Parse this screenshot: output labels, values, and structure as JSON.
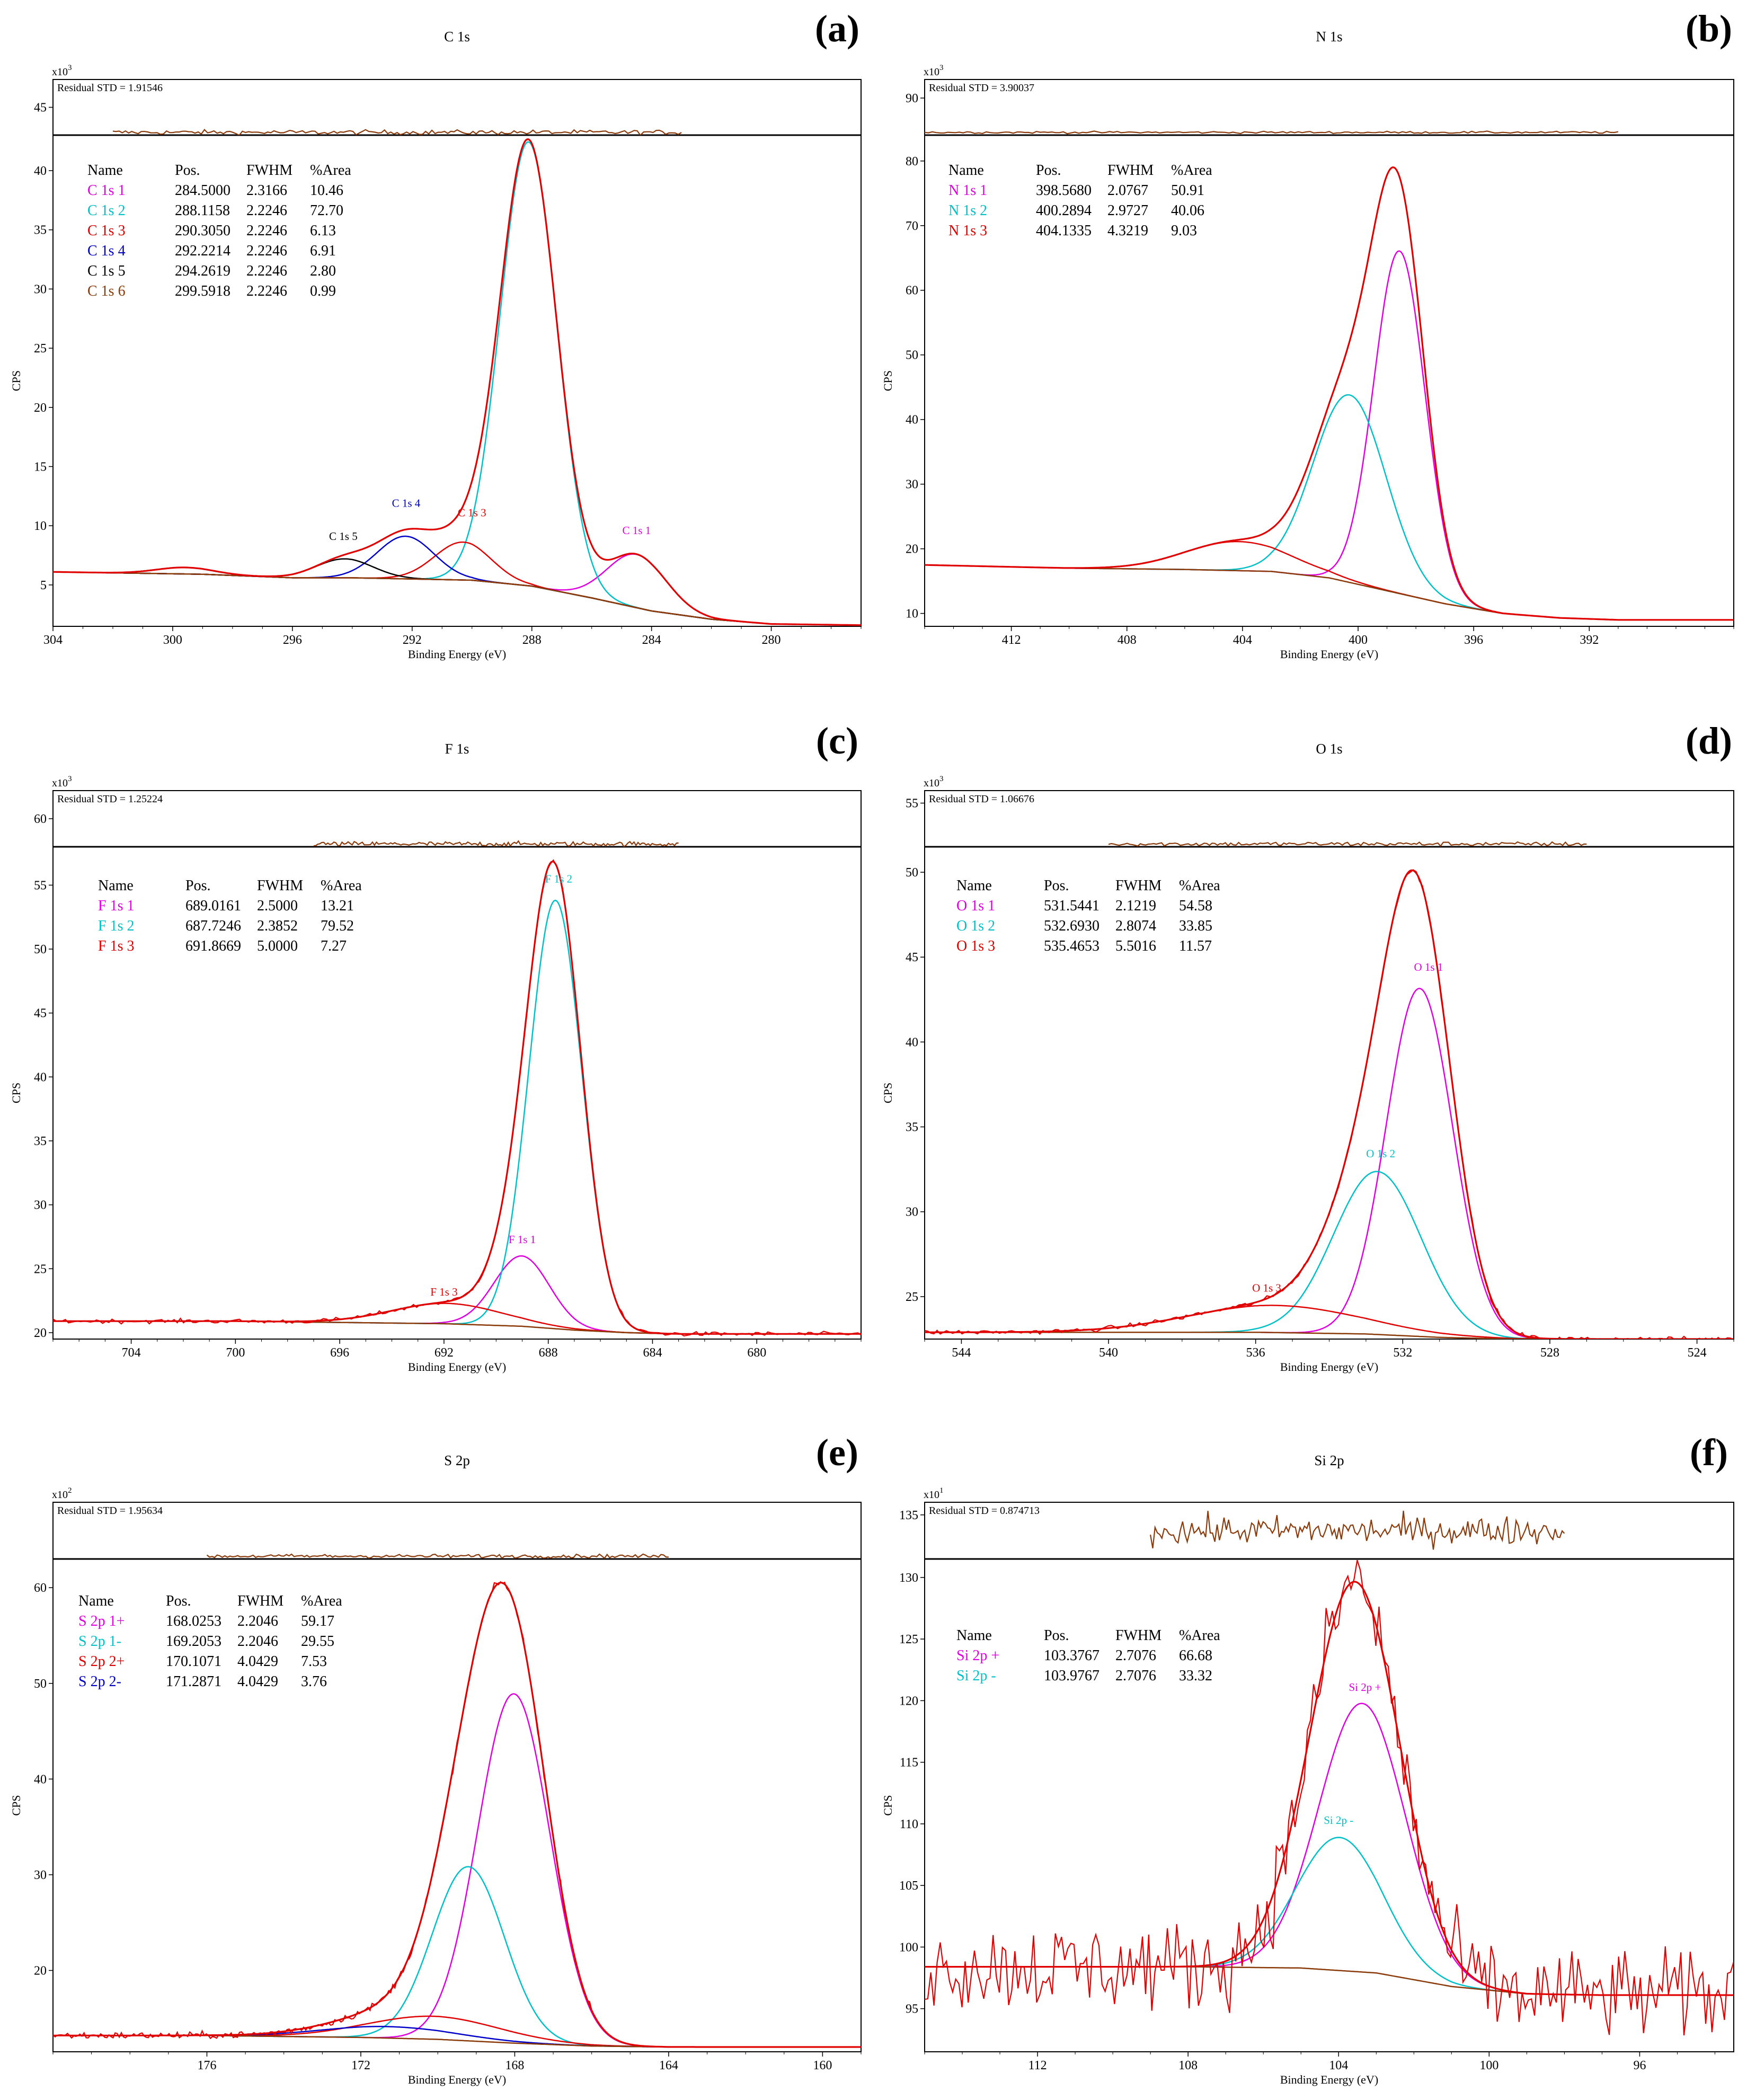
{
  "colors": {
    "envelope": "#e00000",
    "background": "#8b3a0a",
    "axis": "#000000",
    "magenta": "#e000e0",
    "cyan": "#00c0c8",
    "red": "#e00000",
    "blue": "#0000c8",
    "black": "#000000",
    "brown": "#8b3a0a"
  },
  "chart_data": [
    {
      "panel_label": "(a)",
      "title": "C 1s",
      "residual": "Residual STD = 1.91546",
      "scale": "x10",
      "exp": "3",
      "type": "line",
      "xlabel": "Binding Energy (eV)",
      "ylabel": "CPS",
      "xlim": [
        304,
        277
      ],
      "ylim": [
        1.5,
        43
      ],
      "residual_ylim": [
        43,
        47
      ],
      "xticks": [
        "304",
        "300",
        "296",
        "292",
        "288",
        "284",
        "280"
      ],
      "yticks": [
        "5",
        "10",
        "15",
        "20",
        "25",
        "30",
        "35",
        "40"
      ],
      "residual_yticks": [
        "45"
      ],
      "table": {
        "headers": [
          "Name",
          "Pos.",
          "FWHM",
          "%Area"
        ],
        "rows": [
          {
            "name": "C 1s 1",
            "pos": "284.5000",
            "fwhm": "2.3166",
            "area": "10.46",
            "color": "magenta"
          },
          {
            "name": "C 1s 2",
            "pos": "288.1158",
            "fwhm": "2.2246",
            "area": "72.70",
            "color": "cyan"
          },
          {
            "name": "C 1s 3",
            "pos": "290.3050",
            "fwhm": "2.2246",
            "area": "6.13",
            "color": "red"
          },
          {
            "name": "C 1s 4",
            "pos": "292.2214",
            "fwhm": "2.2246",
            "area": "6.91",
            "color": "blue"
          },
          {
            "name": "C 1s 5",
            "pos": "294.2619",
            "fwhm": "2.2246",
            "area": "2.80",
            "color": "black"
          },
          {
            "name": "C 1s 6",
            "pos": "299.5918",
            "fwhm": "2.2246",
            "area": "0.99",
            "color": "brown"
          }
        ]
      },
      "labels": [
        {
          "text": "C 1s 1",
          "x": 284.5,
          "y": 9.3,
          "color": "magenta"
        },
        {
          "text": "C 1s 3",
          "x": 290.0,
          "y": 10.8,
          "color": "red"
        },
        {
          "text": "C 1s 4",
          "x": 292.2,
          "y": 11.6,
          "color": "blue"
        },
        {
          "text": "C 1s 5",
          "x": 294.3,
          "y": 8.8,
          "color": "black"
        }
      ],
      "bg": {
        "xs": [
          304,
          299,
          296,
          294,
          292,
          290,
          288,
          286,
          284,
          282,
          280,
          277
        ],
        "ys": [
          6.1,
          5.9,
          5.6,
          5.6,
          5.5,
          5.4,
          4.9,
          3.9,
          2.8,
          2.1,
          1.7,
          1.6
        ]
      },
      "peaks": [
        {
          "c": 284.5,
          "h": 4.5,
          "w": 2.3166,
          "color": "magenta"
        },
        {
          "c": 288.1158,
          "h": 37.5,
          "w": 2.2246,
          "color": "cyan"
        },
        {
          "c": 290.305,
          "h": 3.2,
          "w": 2.2246,
          "color": "red"
        },
        {
          "c": 292.2214,
          "h": 3.6,
          "w": 2.2246,
          "color": "blue"
        },
        {
          "c": 294.2619,
          "h": 1.6,
          "w": 2.2246,
          "color": "black"
        },
        {
          "c": 299.5918,
          "h": 0.55,
          "w": 2.2246,
          "color": "brown"
        }
      ],
      "noise": 0,
      "noise_range": null,
      "resid_range": [
        302,
        283
      ]
    },
    {
      "panel_label": "(b)",
      "title": "N 1s",
      "residual": "Residual STD = 3.90037",
      "scale": "x10",
      "exp": "3",
      "type": "line",
      "xlabel": "Binding Energy (eV)",
      "ylabel": "CPS",
      "xlim": [
        415,
        387
      ],
      "ylim": [
        8,
        84
      ],
      "residual_ylim": [
        84,
        93
      ],
      "xticks": [
        "412",
        "408",
        "404",
        "400",
        "396",
        "392"
      ],
      "yticks": [
        "10",
        "20",
        "30",
        "40",
        "50",
        "60",
        "70",
        "80"
      ],
      "residual_yticks": [
        "90"
      ],
      "table": {
        "headers": [
          "Name",
          "Pos.",
          "FWHM",
          "%Area"
        ],
        "rows": [
          {
            "name": "N 1s 1",
            "pos": "398.5680",
            "fwhm": "2.0767",
            "area": "50.91",
            "color": "magenta"
          },
          {
            "name": "N 1s 2",
            "pos": "400.2894",
            "fwhm": "2.9727",
            "area": "40.06",
            "color": "cyan"
          },
          {
            "name": "N 1s 3",
            "pos": "404.1335",
            "fwhm": "4.3219",
            "area": "9.03",
            "color": "red"
          }
        ]
      },
      "labels": [],
      "bg": {
        "xs": [
          415,
          410,
          406,
          403,
          401,
          399,
          397,
          395,
          393,
          391,
          387
        ],
        "ys": [
          17.5,
          17.0,
          16.8,
          16.5,
          15.5,
          13.5,
          11.5,
          10.0,
          9.3,
          9.0,
          9.0
        ]
      },
      "peaks": [
        {
          "c": 398.568,
          "h": 53,
          "w": 2.0767,
          "color": "magenta"
        },
        {
          "c": 400.2894,
          "h": 29,
          "w": 2.9727,
          "color": "cyan"
        },
        {
          "c": 404.1335,
          "h": 4.5,
          "w": 4.3219,
          "color": "red"
        }
      ],
      "noise": 0,
      "noise_range": null,
      "resid_range": [
        415,
        391
      ]
    },
    {
      "panel_label": "(c)",
      "title": "F 1s",
      "residual": "Residual STD = 1.25224",
      "scale": "x10",
      "exp": "3",
      "type": "line",
      "xlabel": "Binding Energy (eV)",
      "ylabel": "CPS",
      "xlim": [
        707,
        676
      ],
      "ylim": [
        19.5,
        58
      ],
      "residual_ylim": [
        58,
        62
      ],
      "xticks": [
        "704",
        "700",
        "696",
        "692",
        "688",
        "684",
        "680"
      ],
      "yticks": [
        "20",
        "25",
        "30",
        "35",
        "40",
        "45",
        "50",
        "55"
      ],
      "residual_yticks": [
        "60"
      ],
      "table": {
        "headers": [
          "Name",
          "Pos.",
          "FWHM",
          "%Area"
        ],
        "rows": [
          {
            "name": "F 1s 1",
            "pos": "689.0161",
            "fwhm": "2.5000",
            "area": "13.21",
            "color": "magenta"
          },
          {
            "name": "F 1s 2",
            "pos": "687.7246",
            "fwhm": "2.3852",
            "area": "79.52",
            "color": "cyan"
          },
          {
            "name": "F 1s 3",
            "pos": "691.8669",
            "fwhm": "5.0000",
            "area": "7.27",
            "color": "red"
          }
        ]
      },
      "labels": [
        {
          "text": "F 1s 1",
          "x": 689.0,
          "y": 27.0,
          "color": "magenta"
        },
        {
          "text": "F 1s 2",
          "x": 687.6,
          "y": 55.2,
          "color": "cyan"
        },
        {
          "text": "F 1s 3",
          "x": 692.0,
          "y": 22.9,
          "color": "red"
        }
      ],
      "bg": {
        "xs": [
          707,
          700,
          696,
          692,
          689,
          687,
          685,
          683,
          676
        ],
        "ys": [
          20.9,
          20.9,
          20.8,
          20.7,
          20.5,
          20.2,
          20.0,
          19.9,
          19.9
        ]
      },
      "peaks": [
        {
          "c": 689.0161,
          "h": 5.5,
          "w": 2.5,
          "color": "magenta"
        },
        {
          "c": 687.7246,
          "h": 33.5,
          "w": 2.3852,
          "color": "cyan"
        },
        {
          "c": 691.8669,
          "h": 1.6,
          "w": 5.0,
          "color": "red"
        }
      ],
      "noise": 0.12,
      "noise_range": [
        707,
        676
      ],
      "resid_range": [
        697,
        683
      ]
    },
    {
      "panel_label": "(d)",
      "title": "O 1s",
      "residual": "Residual STD = 1.06676",
      "scale": "x10",
      "exp": "3",
      "type": "line",
      "xlabel": "Binding Energy (eV)",
      "ylabel": "CPS",
      "xlim": [
        545,
        523
      ],
      "ylim": [
        22.5,
        51.5
      ],
      "residual_ylim": [
        51.5,
        56
      ],
      "xticks": [
        "544",
        "540",
        "536",
        "532",
        "528",
        "524"
      ],
      "yticks": [
        "25",
        "30",
        "35",
        "40",
        "45",
        "50"
      ],
      "residual_yticks": [
        "55"
      ],
      "table": {
        "headers": [
          "Name",
          "Pos.",
          "FWHM",
          "%Area"
        ],
        "rows": [
          {
            "name": "O 1s 1",
            "pos": "531.5441",
            "fwhm": "2.1219",
            "area": "54.58",
            "color": "magenta"
          },
          {
            "name": "O 1s 2",
            "pos": "532.6930",
            "fwhm": "2.8074",
            "area": "33.85",
            "color": "cyan"
          },
          {
            "name": "O 1s 3",
            "pos": "535.4653",
            "fwhm": "5.5016",
            "area": "11.57",
            "color": "red"
          }
        ]
      },
      "labels": [
        {
          "text": "O 1s 1",
          "x": 531.3,
          "y": 44.2,
          "color": "magenta"
        },
        {
          "text": "O 1s 2",
          "x": 532.6,
          "y": 33.2,
          "color": "cyan"
        },
        {
          "text": "O 1s 3",
          "x": 535.7,
          "y": 25.3,
          "color": "red"
        }
      ],
      "bg": {
        "xs": [
          545,
          540,
          536,
          533,
          531,
          529,
          527,
          523
        ],
        "ys": [
          22.9,
          22.9,
          22.9,
          22.8,
          22.6,
          22.5,
          22.5,
          22.5
        ]
      },
      "peaks": [
        {
          "c": 531.5441,
          "h": 20.5,
          "w": 2.1219,
          "color": "magenta"
        },
        {
          "c": 532.693,
          "h": 9.6,
          "w": 2.8074,
          "color": "cyan"
        },
        {
          "c": 535.4653,
          "h": 1.6,
          "w": 5.5016,
          "color": "red"
        }
      ],
      "noise": 0.1,
      "noise_range": [
        545,
        523
      ],
      "resid_range": [
        540,
        527
      ]
    },
    {
      "panel_label": "(e)",
      "title": "S 2p",
      "residual": "Residual STD = 1.95634",
      "scale": "x10",
      "exp": "2",
      "type": "line",
      "xlabel": "Binding Energy (eV)",
      "ylabel": "CPS",
      "xlim": [
        180,
        159
      ],
      "ylim": [
        11.5,
        63
      ],
      "residual_ylim": [
        63,
        68
      ],
      "xticks": [
        "176",
        "172",
        "168",
        "164",
        "160"
      ],
      "yticks": [
        "20",
        "30",
        "40",
        "50",
        "60"
      ],
      "residual_yticks": [],
      "table": {
        "headers": [
          "Name",
          "Pos.",
          "FWHM",
          "%Area"
        ],
        "rows": [
          {
            "name": "S 2p 1+",
            "pos": "168.0253",
            "fwhm": "2.2046",
            "area": "59.17",
            "color": "magenta"
          },
          {
            "name": "S 2p 1-",
            "pos": "169.2053",
            "fwhm": "2.2046",
            "area": "29.55",
            "color": "cyan"
          },
          {
            "name": "S 2p 2+",
            "pos": "170.1071",
            "fwhm": "4.0429",
            "area": "7.53",
            "color": "red"
          },
          {
            "name": "S 2p 2-",
            "pos": "171.2871",
            "fwhm": "4.0429",
            "area": "3.76",
            "color": "blue"
          }
        ]
      },
      "labels": [],
      "bg": {
        "xs": [
          180,
          176,
          172,
          170,
          168,
          166,
          164,
          162,
          159
        ],
        "ys": [
          13.2,
          13.2,
          13.0,
          12.8,
          12.4,
          12.1,
          12.0,
          12.0,
          12.0
        ]
      },
      "peaks": [
        {
          "c": 168.0253,
          "h": 36.5,
          "w": 2.2046,
          "color": "magenta"
        },
        {
          "c": 169.2053,
          "h": 18.2,
          "w": 2.2046,
          "color": "cyan"
        },
        {
          "c": 170.1071,
          "h": 2.4,
          "w": 4.0429,
          "color": "red"
        },
        {
          "c": 171.2871,
          "h": 1.2,
          "w": 4.0429,
          "color": "blue"
        }
      ],
      "noise": 0.25,
      "noise_range": [
        180,
        166
      ],
      "resid_range": [
        176,
        164
      ]
    },
    {
      "panel_label": "(f)",
      "title": "Si 2p",
      "residual": "Residual STD = 0.874713",
      "scale": "x10",
      "exp": "1",
      "type": "line",
      "xlabel": "Binding Energy (eV)",
      "ylabel": "CPS",
      "xlim": [
        115,
        93.5
      ],
      "ylim": [
        91.5,
        131.5
      ],
      "residual_ylim": [
        131.5,
        136
      ],
      "xticks": [
        "112",
        "108",
        "104",
        "100",
        "96"
      ],
      "yticks": [
        "95",
        "100",
        "105",
        "110",
        "115",
        "120",
        "125",
        "130"
      ],
      "residual_yticks": [
        "135"
      ],
      "table": {
        "headers": [
          "Name",
          "Pos.",
          "FWHM",
          "%Area"
        ],
        "rows": [
          {
            "name": "Si 2p +",
            "pos": "103.3767",
            "fwhm": "2.7076",
            "area": "66.68",
            "color": "magenta"
          },
          {
            "name": "Si 2p -",
            "pos": "103.9767",
            "fwhm": "2.7076",
            "area": "33.32",
            "color": "cyan"
          }
        ]
      },
      "labels": [
        {
          "text": "Si 2p +",
          "x": 103.3,
          "y": 120.8,
          "color": "magenta"
        },
        {
          "text": "Si 2p -",
          "x": 104.0,
          "y": 110.0,
          "color": "cyan"
        }
      ],
      "bg": {
        "xs": [
          115,
          108,
          105,
          103,
          101,
          99,
          97,
          93.5
        ],
        "ys": [
          98.4,
          98.4,
          98.3,
          97.9,
          96.8,
          96.2,
          96.1,
          96.1
        ]
      },
      "peaks": [
        {
          "c": 103.3767,
          "h": 21.8,
          "w": 2.7076,
          "color": "magenta"
        },
        {
          "c": 103.9767,
          "h": 10.8,
          "w": 2.7076,
          "color": "cyan"
        }
      ],
      "noise": 2.6,
      "noise_range": [
        115,
        93.5
      ],
      "resid_range": [
        109,
        98
      ],
      "resid_amp": 0.8
    }
  ]
}
